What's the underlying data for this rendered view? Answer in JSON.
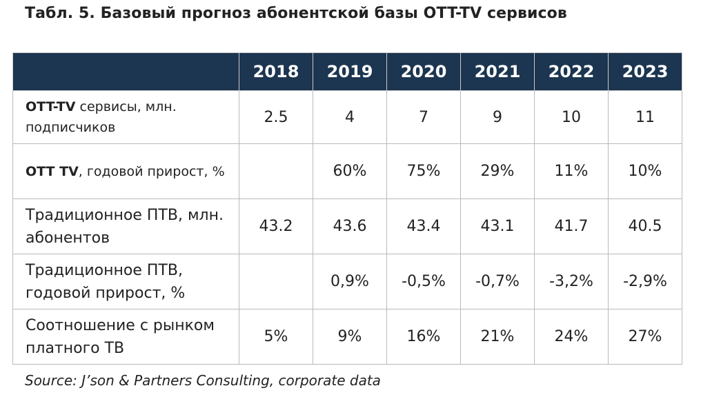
{
  "title": "Табл. 5. Базовый прогноз абонентской базы OTT-TV сервисов",
  "table": {
    "years": [
      "2018",
      "2019",
      "2020",
      "2021",
      "2022",
      "2023"
    ],
    "rows": [
      {
        "label_bold": "OTT-TV",
        "label_rest": " сервисы, млн. подписчиков",
        "values": [
          "2.5",
          "4",
          "7",
          "9",
          "10",
          "11"
        ]
      },
      {
        "label_bold": "OTT TV",
        "label_rest": ", годовой прирост, %",
        "values": [
          "",
          "60%",
          "75%",
          "29%",
          "11%",
          "10%"
        ]
      },
      {
        "label_bold": "",
        "label_rest": "Традиционное ПТВ, млн. абонентов",
        "values": [
          "43.2",
          "43.6",
          "43.4",
          "43.1",
          "41.7",
          "40.5"
        ]
      },
      {
        "label_bold": "",
        "label_rest": "Традиционное ПТВ, годовой прирост, %",
        "values": [
          "",
          "0,9%",
          "-0,5%",
          "-0,7%",
          "-3,2%",
          "-2,9%"
        ]
      },
      {
        "label_bold": "",
        "label_rest": "Соотношение с рынком платного ТВ",
        "values": [
          "5%",
          "9%",
          "16%",
          "21%",
          "24%",
          "27%"
        ]
      }
    ]
  },
  "source": "Source: J’son & Partners Consulting, corporate data"
}
